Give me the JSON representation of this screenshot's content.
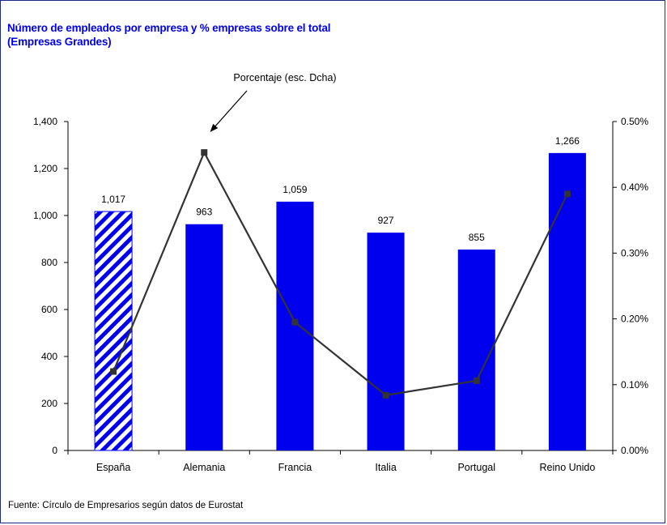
{
  "title_line1": "Número de empleados por empresa y % empresas sobre el total",
  "title_line2": "(Empresas Grandes)",
  "source": "Fuente: Círculo de Empresarios según datos de Eurostat",
  "colors": {
    "bar": "#0000ee",
    "line": "#333333",
    "accent": "#0000ee",
    "hatch_bg": "#ffffff"
  },
  "chart_data": {
    "type": "bar",
    "title": "Número de empleados por empresa y % empresas sobre el total (Empresas Grandes)",
    "categories": [
      "España",
      "Alemania",
      "Francia",
      "Italia",
      "Portugal",
      "Reino Unido"
    ],
    "series": [
      {
        "values": [
          1017,
          963,
          1059,
          927,
          855,
          1266
        ],
        "data_labels": [
          "1,017",
          "963",
          "1,059",
          "927",
          "855",
          "1,266"
        ],
        "type": "bar",
        "axis": "left",
        "highlight": {
          "index": 0,
          "pattern": "diagonal-hatch"
        }
      },
      {
        "values": [
          0.0012,
          0.00453,
          0.00195,
          0.00084,
          0.00106,
          0.0039
        ],
        "type": "line",
        "axis": "right",
        "marker": "square"
      }
    ],
    "y_left": {
      "ylim": [
        0,
        1400
      ],
      "ticks": [
        0,
        200,
        400,
        600,
        800,
        1000,
        1200,
        1400
      ],
      "tick_labels": [
        "0",
        "200",
        "400",
        "600",
        "800",
        "1,000",
        "1,200",
        "1,400"
      ]
    },
    "y_right": {
      "ylim": [
        0,
        0.005
      ],
      "ticks": [
        0,
        0.001,
        0.002,
        0.003,
        0.004,
        0.005
      ],
      "tick_labels": [
        "0.00%",
        "0.10%",
        "0.20%",
        "0.30%",
        "0.40%",
        "0.50%"
      ]
    },
    "annotation": {
      "text": "Porcentaje (esc. Dcha)",
      "target_index": 1,
      "target_series": 1
    },
    "grid": false,
    "legend": "none"
  }
}
